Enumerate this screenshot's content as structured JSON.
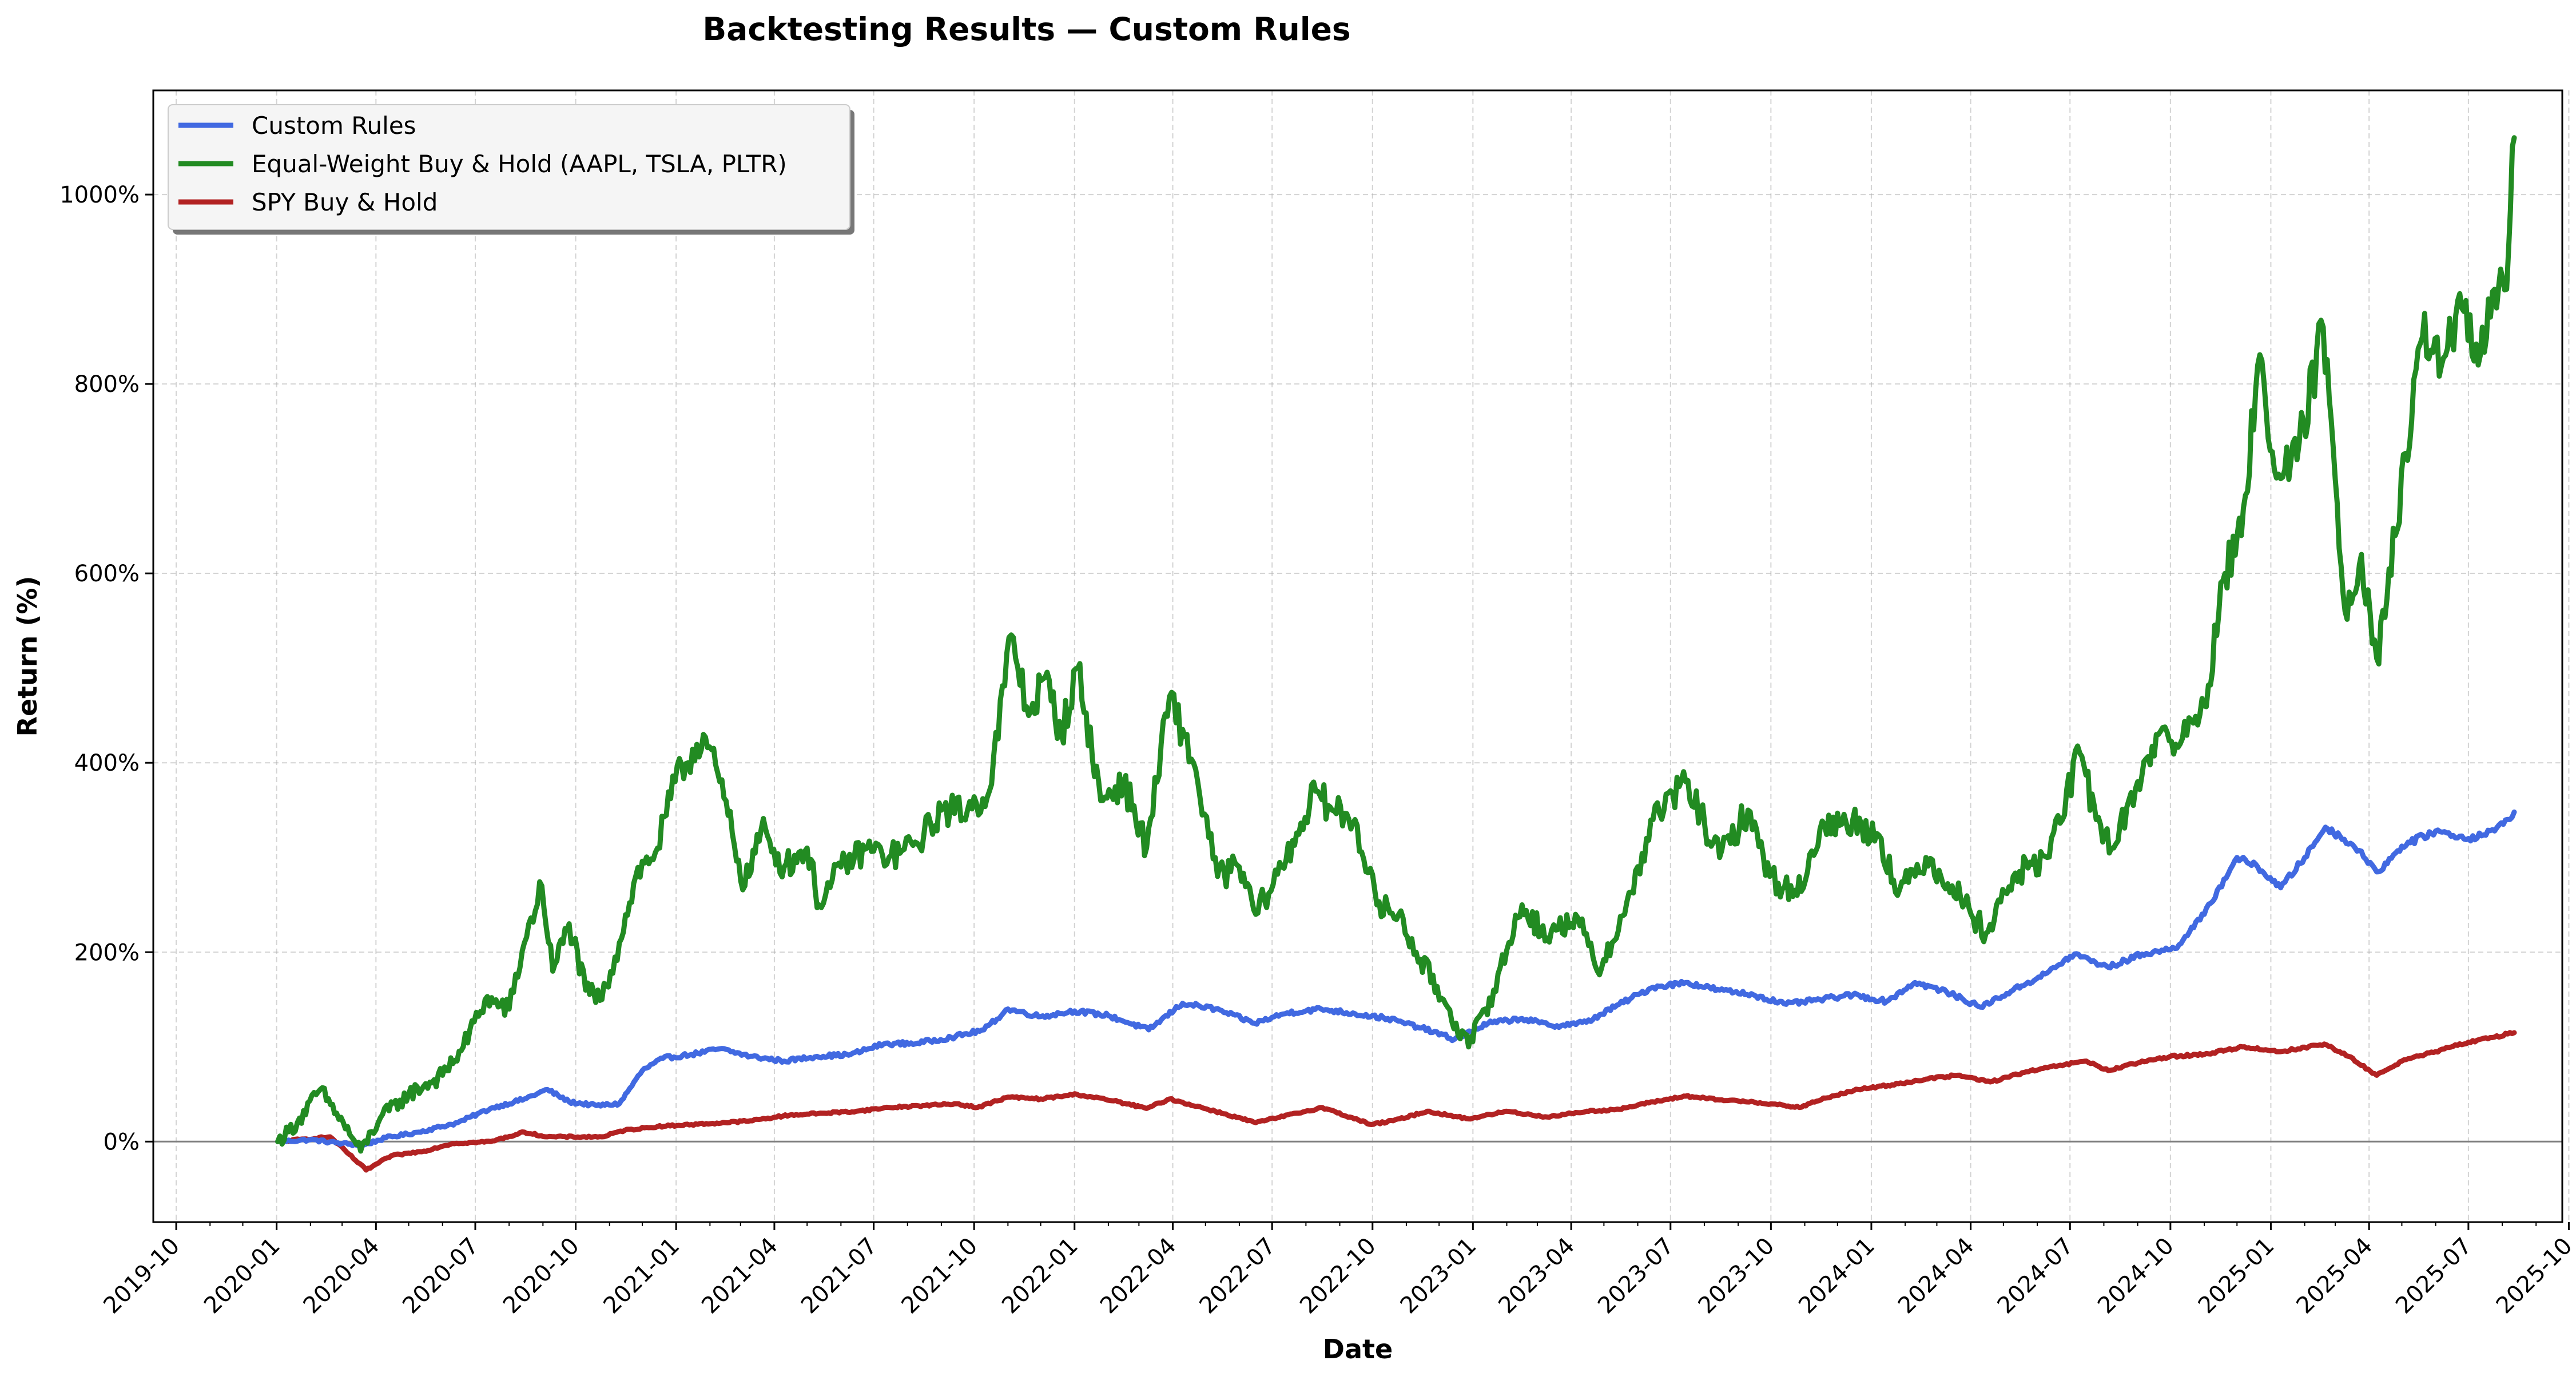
{
  "chart_data": {
    "type": "line",
    "title": "Backtesting Results — Custom Rules",
    "xlabel": "Date",
    "ylabel": "Return (%)",
    "xlim": [
      "2019-09-10",
      "2025-09-25"
    ],
    "ylim": [
      -85,
      1110
    ],
    "grid": true,
    "legend_position": "top-left",
    "reference_line": 0,
    "x_ticks": [
      "2019-10",
      "2020-01",
      "2020-04",
      "2020-07",
      "2020-10",
      "2021-01",
      "2021-04",
      "2021-07",
      "2021-10",
      "2022-01",
      "2022-04",
      "2022-07",
      "2022-10",
      "2023-01",
      "2023-04",
      "2023-07",
      "2023-10",
      "2024-01",
      "2024-04",
      "2024-07",
      "2024-10",
      "2025-01",
      "2025-04",
      "2025-07",
      "2025-10"
    ],
    "y_ticks": [
      0,
      200,
      400,
      600,
      800,
      1000
    ],
    "y_tick_labels": [
      "0%",
      "200%",
      "400%",
      "600%",
      "800%",
      "1000%"
    ],
    "series": [
      {
        "name": "Custom Rules",
        "color": "#4169e1",
        "points": [
          [
            "2020-01-02",
            0
          ],
          [
            "2020-02-01",
            2
          ],
          [
            "2020-03-01",
            -2
          ],
          [
            "2020-03-20",
            -4
          ],
          [
            "2020-04-10",
            4
          ],
          [
            "2020-05-10",
            10
          ],
          [
            "2020-06-15",
            20
          ],
          [
            "2020-07-15",
            35
          ],
          [
            "2020-08-15",
            45
          ],
          [
            "2020-09-05",
            55
          ],
          [
            "2020-09-25",
            42
          ],
          [
            "2020-10-20",
            38
          ],
          [
            "2020-11-10",
            40
          ],
          [
            "2020-12-01",
            75
          ],
          [
            "2020-12-20",
            88
          ],
          [
            "2021-01-15",
            92
          ],
          [
            "2021-02-10",
            98
          ],
          [
            "2021-03-10",
            90
          ],
          [
            "2021-04-10",
            85
          ],
          [
            "2021-05-10",
            90
          ],
          [
            "2021-06-10",
            92
          ],
          [
            "2021-07-10",
            103
          ],
          [
            "2021-08-10",
            104
          ],
          [
            "2021-09-10",
            110
          ],
          [
            "2021-10-10",
            118
          ],
          [
            "2021-11-01",
            140
          ],
          [
            "2021-12-01",
            132
          ],
          [
            "2022-01-01",
            138
          ],
          [
            "2022-02-01",
            133
          ],
          [
            "2022-03-10",
            118
          ],
          [
            "2022-04-10",
            146
          ],
          [
            "2022-05-10",
            140
          ],
          [
            "2022-06-15",
            125
          ],
          [
            "2022-07-15",
            136
          ],
          [
            "2022-08-15",
            140
          ],
          [
            "2022-09-15",
            135
          ],
          [
            "2022-10-15",
            130
          ],
          [
            "2022-11-15",
            120
          ],
          [
            "2022-12-15",
            108
          ],
          [
            "2023-01-15",
            125
          ],
          [
            "2023-02-15",
            130
          ],
          [
            "2023-03-15",
            122
          ],
          [
            "2023-04-15",
            126
          ],
          [
            "2023-05-15",
            145
          ],
          [
            "2023-06-15",
            163
          ],
          [
            "2023-07-15",
            168
          ],
          [
            "2023-08-15",
            160
          ],
          [
            "2023-09-15",
            155
          ],
          [
            "2023-10-15",
            145
          ],
          [
            "2023-11-15",
            150
          ],
          [
            "2023-12-15",
            155
          ],
          [
            "2024-01-15",
            148
          ],
          [
            "2024-02-10",
            168
          ],
          [
            "2024-03-10",
            158
          ],
          [
            "2024-04-10",
            142
          ],
          [
            "2024-05-10",
            160
          ],
          [
            "2024-06-10",
            178
          ],
          [
            "2024-07-05",
            198
          ],
          [
            "2024-08-05",
            184
          ],
          [
            "2024-09-05",
            198
          ],
          [
            "2024-10-05",
            204
          ],
          [
            "2024-11-01",
            240
          ],
          [
            "2024-12-01",
            300
          ],
          [
            "2024-12-20",
            290
          ],
          [
            "2025-01-10",
            268
          ],
          [
            "2025-02-01",
            300
          ],
          [
            "2025-02-20",
            332
          ],
          [
            "2025-03-15",
            315
          ],
          [
            "2025-04-10",
            285
          ],
          [
            "2025-05-01",
            312
          ],
          [
            "2025-06-01",
            328
          ],
          [
            "2025-07-01",
            320
          ],
          [
            "2025-07-25",
            328
          ],
          [
            "2025-08-12",
            348
          ]
        ]
      },
      {
        "name": "Equal-Weight Buy & Hold (AAPL, TSLA, PLTR)",
        "color": "#228b22",
        "points": [
          [
            "2020-01-02",
            0
          ],
          [
            "2020-01-20",
            20
          ],
          [
            "2020-02-10",
            55
          ],
          [
            "2020-02-25",
            30
          ],
          [
            "2020-03-18",
            -10
          ],
          [
            "2020-04-05",
            25
          ],
          [
            "2020-05-01",
            50
          ],
          [
            "2020-06-01",
            70
          ],
          [
            "2020-06-20",
            100
          ],
          [
            "2020-07-10",
            150
          ],
          [
            "2020-08-01",
            140
          ],
          [
            "2020-08-15",
            210
          ],
          [
            "2020-08-31",
            270
          ],
          [
            "2020-09-10",
            180
          ],
          [
            "2020-09-25",
            230
          ],
          [
            "2020-10-10",
            160
          ],
          [
            "2020-10-25",
            150
          ],
          [
            "2020-11-10",
            210
          ],
          [
            "2020-11-25",
            280
          ],
          [
            "2020-12-15",
            310
          ],
          [
            "2020-12-31",
            380
          ],
          [
            "2021-01-26",
            430
          ],
          [
            "2021-02-10",
            380
          ],
          [
            "2021-03-05",
            270
          ],
          [
            "2021-03-20",
            330
          ],
          [
            "2021-04-10",
            290
          ],
          [
            "2021-05-01",
            310
          ],
          [
            "2021-05-12",
            250
          ],
          [
            "2021-06-01",
            290
          ],
          [
            "2021-06-25",
            310
          ],
          [
            "2021-07-15",
            300
          ],
          [
            "2021-08-10",
            315
          ],
          [
            "2021-09-01",
            350
          ],
          [
            "2021-09-25",
            350
          ],
          [
            "2021-10-15",
            370
          ],
          [
            "2021-11-04",
            535
          ],
          [
            "2021-11-20",
            450
          ],
          [
            "2021-12-05",
            490
          ],
          [
            "2021-12-20",
            430
          ],
          [
            "2022-01-04",
            500
          ],
          [
            "2022-01-25",
            360
          ],
          [
            "2022-02-15",
            380
          ],
          [
            "2022-03-08",
            310
          ],
          [
            "2022-03-29",
            470
          ],
          [
            "2022-04-20",
            400
          ],
          [
            "2022-05-12",
            280
          ],
          [
            "2022-06-01",
            290
          ],
          [
            "2022-06-16",
            240
          ],
          [
            "2022-07-10",
            290
          ],
          [
            "2022-08-10",
            370
          ],
          [
            "2022-08-25",
            350
          ],
          [
            "2022-09-15",
            340
          ],
          [
            "2022-10-05",
            250
          ],
          [
            "2022-10-25",
            240
          ],
          [
            "2022-11-10",
            200
          ],
          [
            "2022-12-05",
            150
          ],
          [
            "2022-12-28",
            100
          ],
          [
            "2023-01-20",
            160
          ],
          [
            "2023-02-15",
            250
          ],
          [
            "2023-03-10",
            215
          ],
          [
            "2023-04-05",
            240
          ],
          [
            "2023-04-25",
            180
          ],
          [
            "2023-05-20",
            240
          ],
          [
            "2023-06-15",
            340
          ],
          [
            "2023-07-15",
            380
          ],
          [
            "2023-08-15",
            300
          ],
          [
            "2023-09-10",
            350
          ],
          [
            "2023-09-30",
            280
          ],
          [
            "2023-10-25",
            260
          ],
          [
            "2023-11-15",
            330
          ],
          [
            "2023-12-15",
            340
          ],
          [
            "2024-01-10",
            320
          ],
          [
            "2024-01-25",
            260
          ],
          [
            "2024-02-20",
            300
          ],
          [
            "2024-03-15",
            270
          ],
          [
            "2024-04-15",
            220
          ],
          [
            "2024-05-10",
            280
          ],
          [
            "2024-06-10",
            300
          ],
          [
            "2024-07-10",
            410
          ],
          [
            "2024-07-25",
            340
          ],
          [
            "2024-08-10",
            310
          ],
          [
            "2024-09-01",
            380
          ],
          [
            "2024-09-20",
            430
          ],
          [
            "2024-10-10",
            420
          ],
          [
            "2024-11-01",
            460
          ],
          [
            "2024-11-20",
            600
          ],
          [
            "2024-12-05",
            640
          ],
          [
            "2024-12-20",
            820
          ],
          [
            "2025-01-10",
            700
          ],
          [
            "2025-01-25",
            720
          ],
          [
            "2025-02-18",
            860
          ],
          [
            "2025-03-01",
            700
          ],
          [
            "2025-03-10",
            560
          ],
          [
            "2025-03-25",
            620
          ],
          [
            "2025-04-08",
            510
          ],
          [
            "2025-04-25",
            640
          ],
          [
            "2025-05-10",
            760
          ],
          [
            "2025-05-20",
            850
          ],
          [
            "2025-06-10",
            830
          ],
          [
            "2025-06-25",
            880
          ],
          [
            "2025-07-10",
            820
          ],
          [
            "2025-07-25",
            900
          ],
          [
            "2025-08-05",
            900
          ],
          [
            "2025-08-12",
            1060
          ]
        ]
      },
      {
        "name": "SPY Buy & Hold",
        "color": "#b22222",
        "points": [
          [
            "2020-01-02",
            0
          ],
          [
            "2020-02-19",
            5
          ],
          [
            "2020-03-23",
            -30
          ],
          [
            "2020-04-15",
            -15
          ],
          [
            "2020-05-15",
            -10
          ],
          [
            "2020-06-10",
            -2
          ],
          [
            "2020-07-15",
            0
          ],
          [
            "2020-08-15",
            10
          ],
          [
            "2020-09-05",
            5
          ],
          [
            "2020-10-25",
            5
          ],
          [
            "2020-11-15",
            12
          ],
          [
            "2020-12-15",
            16
          ],
          [
            "2021-01-15",
            18
          ],
          [
            "2021-02-15",
            20
          ],
          [
            "2021-03-10",
            22
          ],
          [
            "2021-04-15",
            28
          ],
          [
            "2021-05-15",
            30
          ],
          [
            "2021-06-15",
            32
          ],
          [
            "2021-07-15",
            36
          ],
          [
            "2021-08-15",
            38
          ],
          [
            "2021-09-15",
            40
          ],
          [
            "2021-10-04",
            36
          ],
          [
            "2021-11-01",
            47
          ],
          [
            "2021-12-01",
            45
          ],
          [
            "2022-01-03",
            50
          ],
          [
            "2022-02-10",
            42
          ],
          [
            "2022-03-08",
            35
          ],
          [
            "2022-03-29",
            45
          ],
          [
            "2022-05-10",
            32
          ],
          [
            "2022-06-16",
            20
          ],
          [
            "2022-08-16",
            36
          ],
          [
            "2022-09-30",
            18
          ],
          [
            "2022-10-20",
            22
          ],
          [
            "2022-11-20",
            32
          ],
          [
            "2022-12-28",
            24
          ],
          [
            "2023-02-01",
            32
          ],
          [
            "2023-03-10",
            26
          ],
          [
            "2023-04-15",
            32
          ],
          [
            "2023-05-15",
            34
          ],
          [
            "2023-06-15",
            42
          ],
          [
            "2023-07-15",
            48
          ],
          [
            "2023-08-15",
            44
          ],
          [
            "2023-09-15",
            42
          ],
          [
            "2023-10-27",
            36
          ],
          [
            "2023-11-20",
            46
          ],
          [
            "2023-12-20",
            55
          ],
          [
            "2024-01-20",
            60
          ],
          [
            "2024-02-20",
            66
          ],
          [
            "2024-03-20",
            70
          ],
          [
            "2024-04-19",
            63
          ],
          [
            "2024-05-20",
            73
          ],
          [
            "2024-06-20",
            80
          ],
          [
            "2024-07-16",
            85
          ],
          [
            "2024-08-05",
            75
          ],
          [
            "2024-09-01",
            83
          ],
          [
            "2024-10-01",
            90
          ],
          [
            "2024-11-01",
            92
          ],
          [
            "2024-12-06",
            100
          ],
          [
            "2025-01-10",
            95
          ],
          [
            "2025-02-19",
            103
          ],
          [
            "2025-03-13",
            90
          ],
          [
            "2025-04-08",
            70
          ],
          [
            "2025-05-01",
            85
          ],
          [
            "2025-06-01",
            95
          ],
          [
            "2025-07-01",
            105
          ],
          [
            "2025-08-12",
            115
          ]
        ]
      }
    ]
  }
}
